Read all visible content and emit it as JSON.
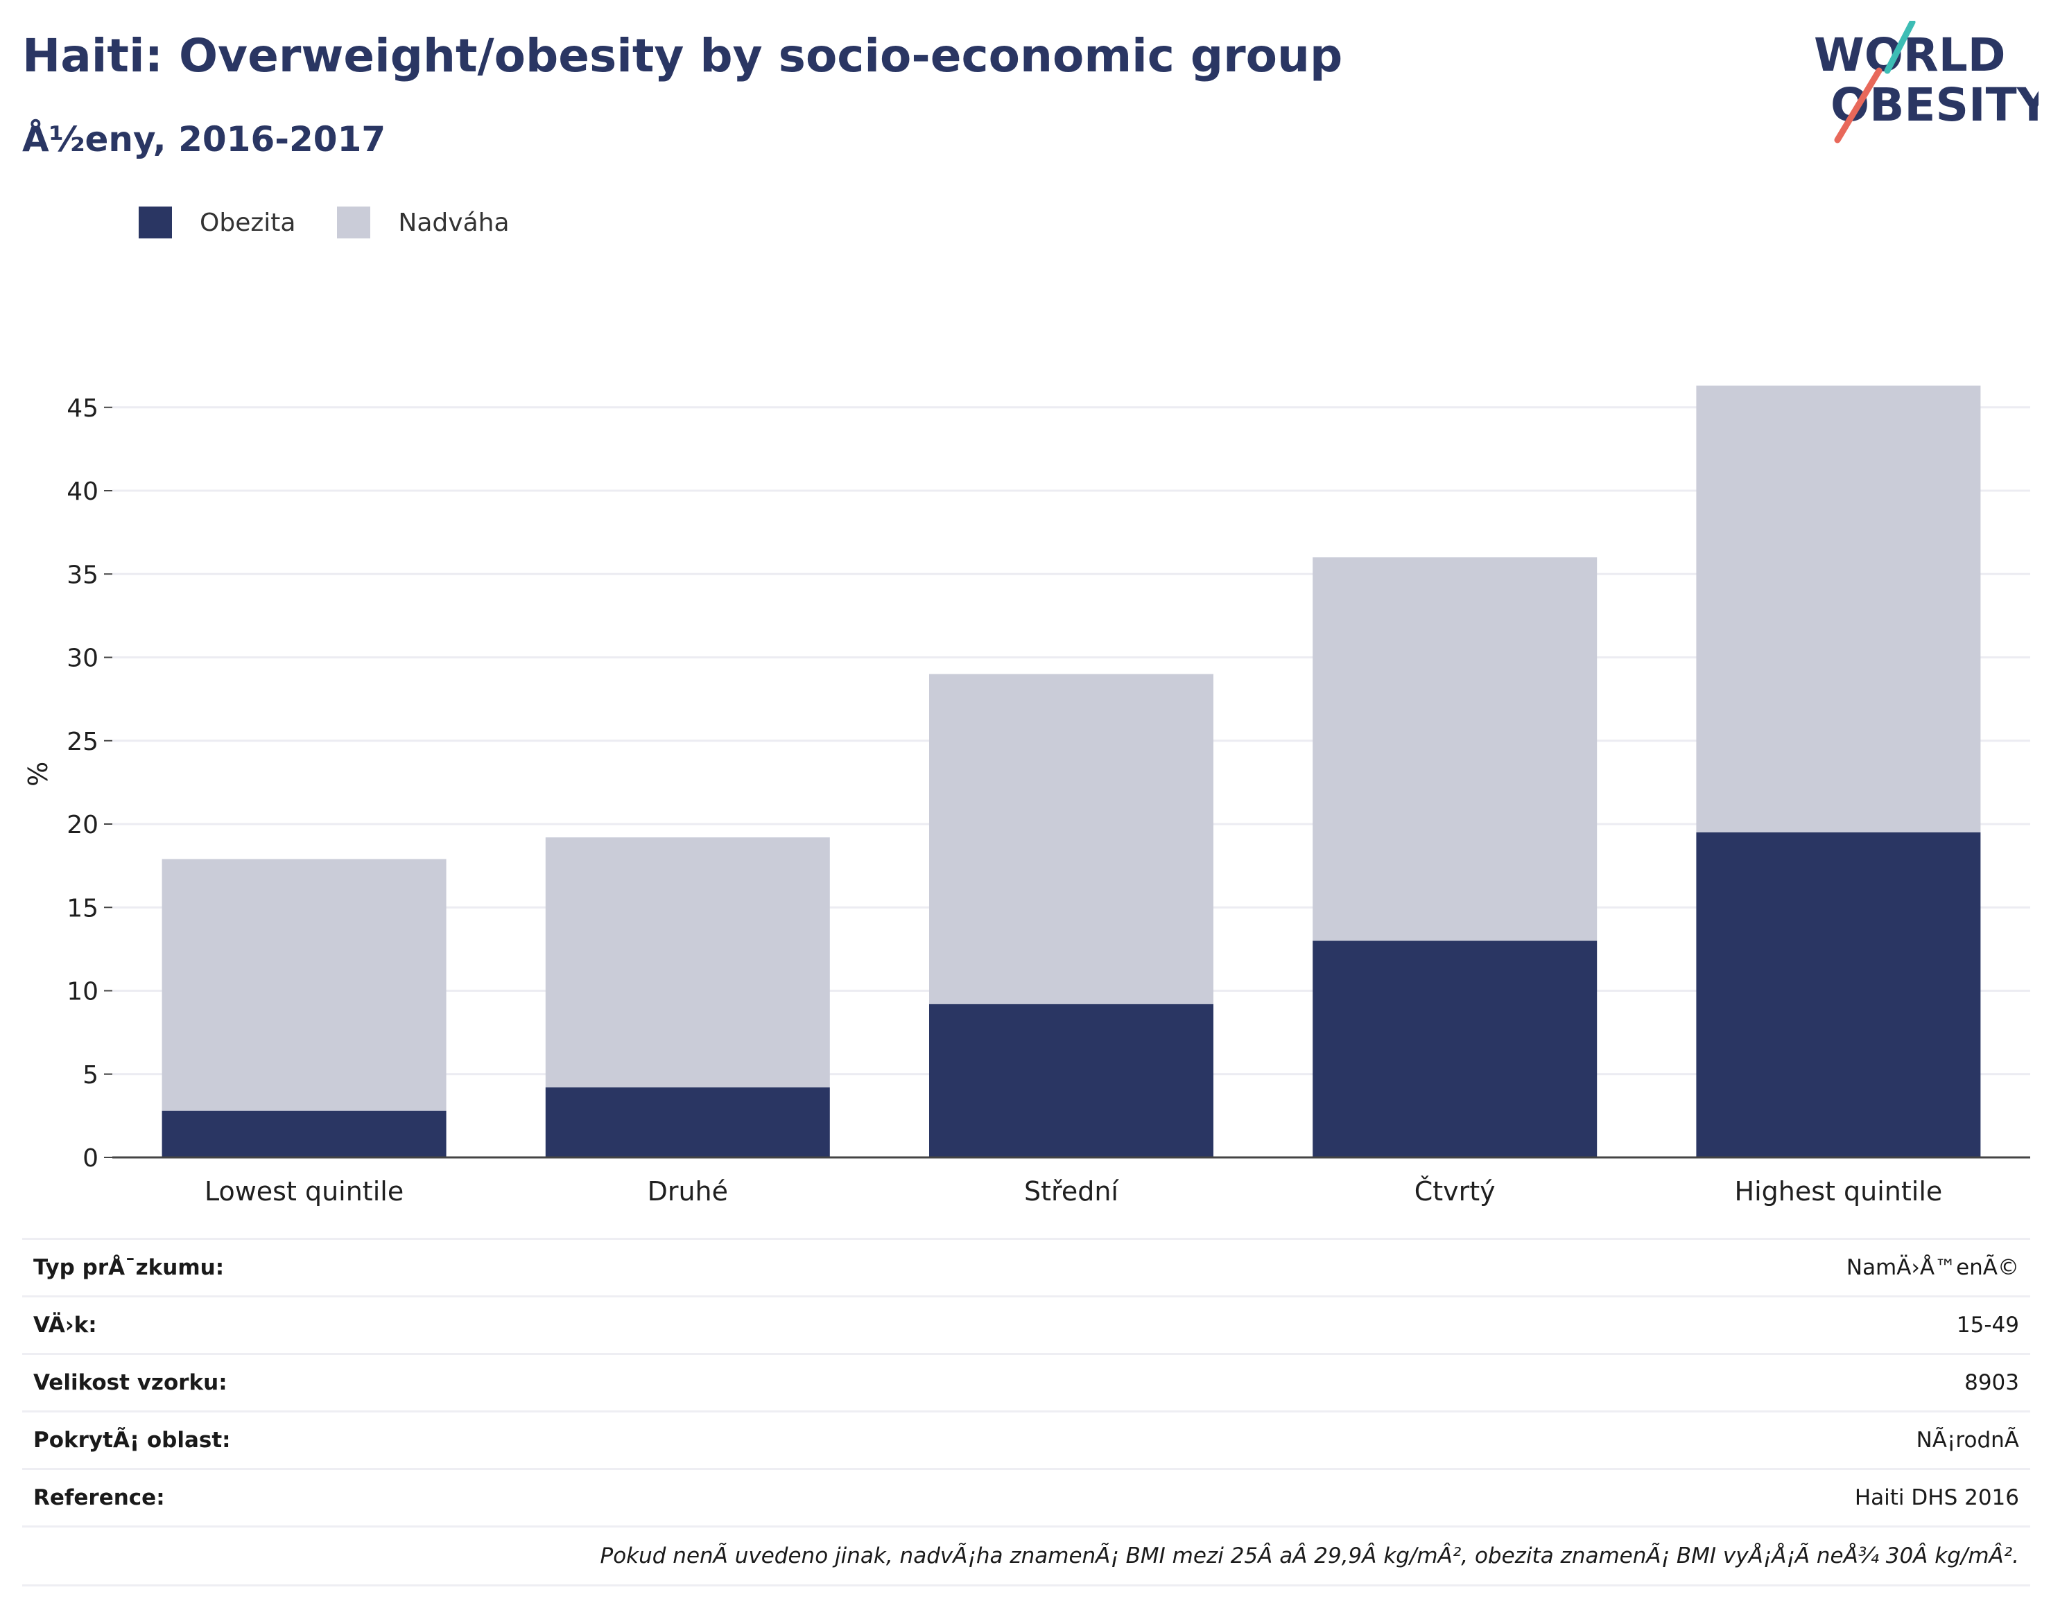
{
  "header": {
    "title": "Haiti: Overweight/obesity by socio-economic group",
    "subtitle": "Å½eny, 2016-2017"
  },
  "logo": {
    "line1": "WORLD",
    "line2": "OBESITY",
    "colors": {
      "text": "#2a3663",
      "accent_teal": "#3dbdb5",
      "accent_coral": "#e8685a"
    }
  },
  "legend": {
    "items": [
      {
        "label": "Obezita",
        "color": "#2a3663"
      },
      {
        "label": "Nadváha",
        "color": "#caccd8"
      }
    ]
  },
  "chart_data": {
    "type": "bar",
    "stacked": true,
    "categories": [
      "Lowest quintile",
      "Druhé",
      "Střední",
      "Čtvrtý",
      "Highest quintile"
    ],
    "series": [
      {
        "name": "Obezita",
        "color": "#2a3663",
        "values": [
          2.8,
          4.2,
          9.2,
          13.0,
          19.5
        ]
      },
      {
        "name": "Nadváha",
        "color": "#caccd8",
        "values": [
          15.1,
          15.0,
          19.8,
          23.0,
          26.8
        ]
      }
    ],
    "totals": [
      17.9,
      19.2,
      29.0,
      36.0,
      46.3
    ],
    "ylabel": "%",
    "xlabel": "",
    "ylim": [
      0,
      47
    ],
    "yticks": [
      0,
      5,
      10,
      15,
      20,
      25,
      30,
      35,
      40,
      45
    ],
    "grid": true,
    "legend_position": "top-left"
  },
  "info": {
    "rows": [
      {
        "label": "Typ prÅ¯zkumu:",
        "value": "NamÄ›Å™enÃ©"
      },
      {
        "label": "VÄ›k:",
        "value": "15-49"
      },
      {
        "label": "Velikost vzorku:",
        "value": "8903"
      },
      {
        "label": "PokrytÃ¡ oblast:",
        "value": "NÃ¡rodnÃ"
      },
      {
        "label": "Reference:",
        "value": "Haiti DHS 2016"
      }
    ],
    "note": "Pokud nenÃ uvedeno jinak, nadvÃ¡ha znamenÃ¡ BMI mezi 25Â aÂ 29,9Â kg/mÂ², obezita znamenÃ¡ BMI vyÅ¡Å¡Ã neÅ¾ 30Â kg/mÂ²."
  }
}
